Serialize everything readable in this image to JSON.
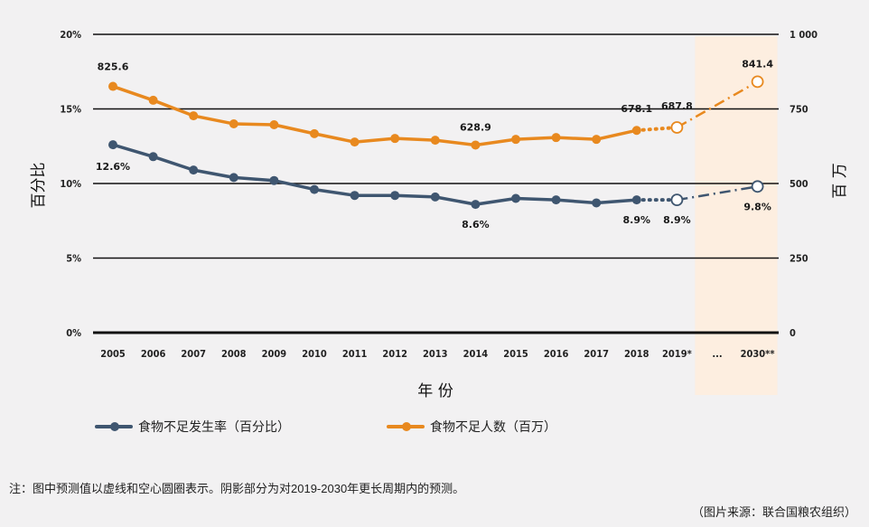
{
  "chart_data": {
    "type": "line",
    "categories": [
      "2005",
      "2006",
      "2007",
      "2008",
      "2009",
      "2010",
      "2011",
      "2012",
      "2013",
      "2014",
      "2015",
      "2016",
      "2017",
      "2018",
      "2019*",
      "...",
      "2030**"
    ],
    "xlabel": "年 份",
    "ylabel_left": "百分比",
    "ylabel_right": "百 万",
    "left_axis": {
      "range": [
        0,
        20
      ],
      "ticks": [
        "0%",
        "5%",
        "10%",
        "15%",
        "20%"
      ]
    },
    "right_axis": {
      "range": [
        0,
        1000
      ],
      "ticks": [
        "0",
        "250",
        "500",
        "750",
        "1 000"
      ]
    },
    "grid": true,
    "shaded_region": {
      "from": "2019*",
      "to": "2030**",
      "color": "#fdeee0"
    },
    "series": [
      {
        "name": "食物不足发生率（百分比）",
        "axis": "left",
        "color": "#3f5670",
        "values": [
          12.6,
          11.8,
          10.9,
          10.4,
          10.2,
          9.6,
          9.2,
          9.2,
          9.1,
          8.6,
          9.0,
          8.9,
          8.7,
          8.9,
          8.9,
          null,
          9.8
        ],
        "projected_from": "2018",
        "labels": {
          "2005": "12.6%",
          "2014": "8.6%",
          "2018": "8.9%",
          "2019*": "8.9%",
          "2030**": "9.8%"
        }
      },
      {
        "name": "食物不足人数（百万）",
        "axis": "right",
        "color": "#e8891f",
        "values": [
          825.6,
          779,
          727,
          700,
          697,
          667,
          639,
          651,
          645,
          628.9,
          648,
          654,
          648,
          678.1,
          687.8,
          null,
          841.4
        ],
        "projected_from": "2018",
        "labels": {
          "2005": "825.6",
          "2014": "628.9",
          "2018": "678.1",
          "2019*": "687.8",
          "2030**": "841.4"
        }
      }
    ],
    "legend_position": "bottom-left"
  },
  "note": "注：图中预测值以虚线和空心圆圈表示。阴影部分为对2019-2030年更长周期内的预测。",
  "source": "（图片来源：联合国粮农组织）"
}
